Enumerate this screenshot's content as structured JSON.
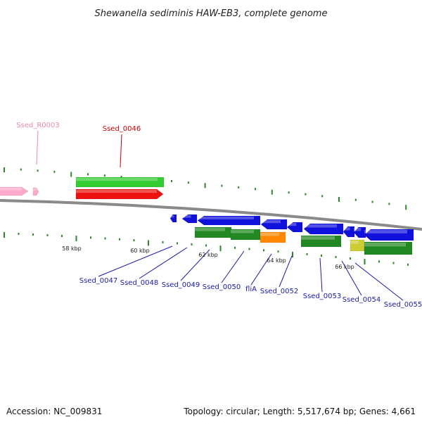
{
  "title": "Shewanella sediminis HAW-EB3, complete genome",
  "footer": {
    "accession": "Accession: NC_009831",
    "summary": "Topology: circular; Length: 5,517,674 bp; Genes: 4,661"
  },
  "colors": {
    "backbone": "#8a8a8a",
    "tick": "#2a8a2a",
    "rna_label": "#e88aa8",
    "highlight_label": "#cc0000",
    "gene_label": "#1a1aaa",
    "cds_green": "#33cc33",
    "cds_red": "#ee1111",
    "cds_blue": "#1111dd",
    "cds_dark_green": "#228822",
    "cds_orange": "#ff8800",
    "cds_pink": "#ffaacc",
    "cds_yellow": "#cccc33"
  },
  "scale_labels": [
    "58 kbp",
    "60 kbp",
    "62 kbp",
    "64 kbp",
    "66 kbp"
  ],
  "upper_labels": [
    {
      "id": "Ssed_R0003",
      "role": "rna"
    },
    {
      "id": "Ssed_0046",
      "role": "highlight"
    }
  ],
  "lower_labels": [
    "Ssed_0047",
    "Ssed_0048",
    "Ssed_0049",
    "Ssed_0050",
    "fliA",
    "Ssed_0052",
    "Ssed_0053",
    "Ssed_0054",
    "Ssed_0055"
  ]
}
